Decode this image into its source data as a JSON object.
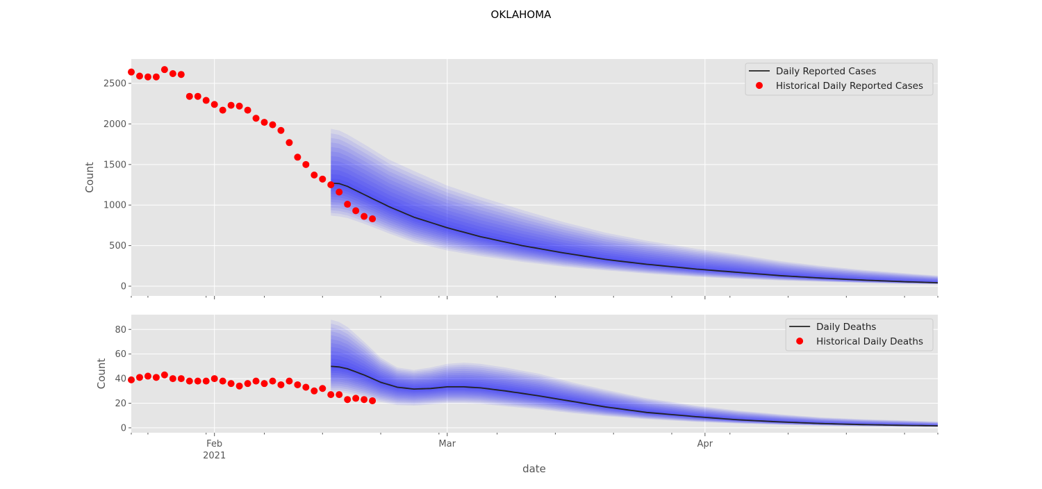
{
  "figure": {
    "title": "OKLAHOMA",
    "xlabel": "date",
    "colors": {
      "panel_bg": "#e5e5e5",
      "grid": "#ffffff",
      "forecast_line": "#222222",
      "historical_points": "#ff0000",
      "forecast_band": "#0000ff",
      "tick_text": "#555555"
    }
  },
  "x_axis": {
    "domain": [
      "2021-01-22",
      "2021-04-29"
    ],
    "tick_labels": [
      {
        "date": "2021-02-01",
        "label": "Feb",
        "sublabel": "2021"
      },
      {
        "date": "2021-03-01",
        "label": "Mar",
        "sublabel": ""
      },
      {
        "date": "2021-04-01",
        "label": "Apr",
        "sublabel": ""
      }
    ],
    "minor_ticks": [
      "2021-01-22",
      "2021-01-24",
      "2021-01-31",
      "2021-02-07",
      "2021-02-14",
      "2021-02-21",
      "2021-02-28",
      "2021-03-07",
      "2021-03-14",
      "2021-03-21",
      "2021-03-28",
      "2021-04-04",
      "2021-04-11",
      "2021-04-18",
      "2021-04-25",
      "2021-04-29"
    ]
  },
  "chart_data": [
    {
      "type": "line",
      "ylabel": "Count",
      "ylim": [
        -120,
        2800
      ],
      "yticks": [
        0,
        500,
        1000,
        1500,
        2000,
        2500
      ],
      "grid": true,
      "legend_position": "top-right",
      "legend": [
        {
          "label": "Daily Reported Cases",
          "kind": "line"
        },
        {
          "label": "Historical Daily Reported Cases",
          "kind": "marker"
        }
      ],
      "historical": {
        "name": "Historical Daily Reported Cases",
        "start": "2021-01-22",
        "values": [
          2640,
          2590,
          2580,
          2580,
          2670,
          2620,
          2610,
          2340,
          2340,
          2290,
          2240,
          2170,
          2230,
          2220,
          2170,
          2070,
          2020,
          1990,
          1920,
          1770,
          1590,
          1500,
          1370,
          1320,
          1250,
          1160,
          1010,
          930,
          860,
          830
        ]
      },
      "forecast": {
        "name": "Daily Reported Cases",
        "start": "2021-02-15",
        "median": [
          [
            "2021-02-15",
            1270
          ],
          [
            "2021-02-16",
            1265
          ],
          [
            "2021-02-17",
            1230
          ],
          [
            "2021-02-19",
            1130
          ],
          [
            "2021-02-22",
            980
          ],
          [
            "2021-02-25",
            850
          ],
          [
            "2021-03-01",
            720
          ],
          [
            "2021-03-05",
            610
          ],
          [
            "2021-03-10",
            500
          ],
          [
            "2021-03-15",
            410
          ],
          [
            "2021-03-20",
            330
          ],
          [
            "2021-03-25",
            270
          ],
          [
            "2021-03-31",
            210
          ],
          [
            "2021-04-05",
            170
          ],
          [
            "2021-04-10",
            130
          ],
          [
            "2021-04-15",
            100
          ],
          [
            "2021-04-20",
            75
          ],
          [
            "2021-04-25",
            55
          ],
          [
            "2021-04-29",
            42
          ]
        ],
        "upper": [
          [
            "2021-02-15",
            1940
          ],
          [
            "2021-02-16",
            1920
          ],
          [
            "2021-02-17",
            1870
          ],
          [
            "2021-02-19",
            1750
          ],
          [
            "2021-02-22",
            1560
          ],
          [
            "2021-02-25",
            1420
          ],
          [
            "2021-03-01",
            1240
          ],
          [
            "2021-03-05",
            1100
          ],
          [
            "2021-03-10",
            940
          ],
          [
            "2021-03-15",
            790
          ],
          [
            "2021-03-20",
            660
          ],
          [
            "2021-03-25",
            560
          ],
          [
            "2021-03-31",
            460
          ],
          [
            "2021-04-05",
            390
          ],
          [
            "2021-04-10",
            310
          ],
          [
            "2021-04-15",
            250
          ],
          [
            "2021-04-20",
            200
          ],
          [
            "2021-04-25",
            160
          ],
          [
            "2021-04-29",
            130
          ]
        ],
        "lower": [
          [
            "2021-02-15",
            870
          ],
          [
            "2021-02-16",
            860
          ],
          [
            "2021-02-17",
            840
          ],
          [
            "2021-02-19",
            770
          ],
          [
            "2021-02-22",
            650
          ],
          [
            "2021-02-25",
            540
          ],
          [
            "2021-03-01",
            440
          ],
          [
            "2021-03-05",
            370
          ],
          [
            "2021-03-10",
            300
          ],
          [
            "2021-03-15",
            240
          ],
          [
            "2021-03-20",
            195
          ],
          [
            "2021-03-25",
            155
          ],
          [
            "2021-03-31",
            115
          ],
          [
            "2021-04-05",
            90
          ],
          [
            "2021-04-10",
            70
          ],
          [
            "2021-04-15",
            55
          ],
          [
            "2021-04-20",
            40
          ],
          [
            "2021-04-25",
            30
          ],
          [
            "2021-04-29",
            25
          ]
        ]
      }
    },
    {
      "type": "line",
      "ylabel": "Count",
      "ylim": [
        -4,
        92
      ],
      "yticks": [
        0,
        20,
        40,
        60,
        80
      ],
      "grid": true,
      "legend_position": "top-right",
      "legend": [
        {
          "label": "Daily Deaths",
          "kind": "line"
        },
        {
          "label": "Historical Daily Deaths",
          "kind": "marker"
        }
      ],
      "historical": {
        "name": "Historical Daily Deaths",
        "start": "2021-01-22",
        "values": [
          39,
          41,
          42,
          41,
          43,
          40,
          40,
          38,
          38,
          38,
          40,
          38,
          36,
          34,
          36,
          38,
          36,
          38,
          35,
          38,
          35,
          33,
          30,
          32,
          27,
          27,
          23,
          24,
          23,
          22
        ]
      },
      "forecast": {
        "name": "Daily Deaths",
        "start": "2021-02-15",
        "median": [
          [
            "2021-02-15",
            50
          ],
          [
            "2021-02-16",
            49.5
          ],
          [
            "2021-02-17",
            48
          ],
          [
            "2021-02-19",
            43
          ],
          [
            "2021-02-21",
            37
          ],
          [
            "2021-02-23",
            33
          ],
          [
            "2021-02-25",
            31.5
          ],
          [
            "2021-02-27",
            32
          ],
          [
            "2021-03-01",
            33.3
          ],
          [
            "2021-03-03",
            33.3
          ],
          [
            "2021-03-05",
            32.5
          ],
          [
            "2021-03-08",
            30
          ],
          [
            "2021-03-12",
            26
          ],
          [
            "2021-03-16",
            21.5
          ],
          [
            "2021-03-20",
            17
          ],
          [
            "2021-03-25",
            12.5
          ],
          [
            "2021-03-31",
            9
          ],
          [
            "2021-04-05",
            6.5
          ],
          [
            "2021-04-10",
            4.8
          ],
          [
            "2021-04-15",
            3.5
          ],
          [
            "2021-04-20",
            2.6
          ],
          [
            "2021-04-25",
            2.0
          ],
          [
            "2021-04-29",
            1.6
          ]
        ],
        "upper": [
          [
            "2021-02-15",
            88
          ],
          [
            "2021-02-16",
            86
          ],
          [
            "2021-02-17",
            82
          ],
          [
            "2021-02-19",
            70
          ],
          [
            "2021-02-21",
            57
          ],
          [
            "2021-02-23",
            49
          ],
          [
            "2021-02-25",
            47
          ],
          [
            "2021-02-27",
            49
          ],
          [
            "2021-03-01",
            52
          ],
          [
            "2021-03-03",
            53
          ],
          [
            "2021-03-05",
            52
          ],
          [
            "2021-03-08",
            49
          ],
          [
            "2021-03-12",
            44
          ],
          [
            "2021-03-16",
            37
          ],
          [
            "2021-03-20",
            31
          ],
          [
            "2021-03-25",
            24
          ],
          [
            "2021-03-31",
            18
          ],
          [
            "2021-04-05",
            14
          ],
          [
            "2021-04-10",
            11
          ],
          [
            "2021-04-15",
            8.5
          ],
          [
            "2021-04-20",
            7
          ],
          [
            "2021-04-25",
            6
          ],
          [
            "2021-04-29",
            5
          ]
        ],
        "lower": [
          [
            "2021-02-15",
            29
          ],
          [
            "2021-02-16",
            29
          ],
          [
            "2021-02-17",
            28
          ],
          [
            "2021-02-19",
            25
          ],
          [
            "2021-02-21",
            21
          ],
          [
            "2021-02-23",
            18.5
          ],
          [
            "2021-02-25",
            18
          ],
          [
            "2021-02-27",
            19
          ],
          [
            "2021-03-01",
            20
          ],
          [
            "2021-03-03",
            20
          ],
          [
            "2021-03-05",
            19.5
          ],
          [
            "2021-03-08",
            17.5
          ],
          [
            "2021-03-12",
            15
          ],
          [
            "2021-03-16",
            12
          ],
          [
            "2021-03-20",
            9.5
          ],
          [
            "2021-03-25",
            7
          ],
          [
            "2021-03-31",
            4.8
          ],
          [
            "2021-04-05",
            3.5
          ],
          [
            "2021-04-10",
            2.5
          ],
          [
            "2021-04-15",
            1.8
          ],
          [
            "2021-04-20",
            1.3
          ],
          [
            "2021-04-25",
            1.0
          ],
          [
            "2021-04-29",
            0.8
          ]
        ]
      }
    }
  ]
}
